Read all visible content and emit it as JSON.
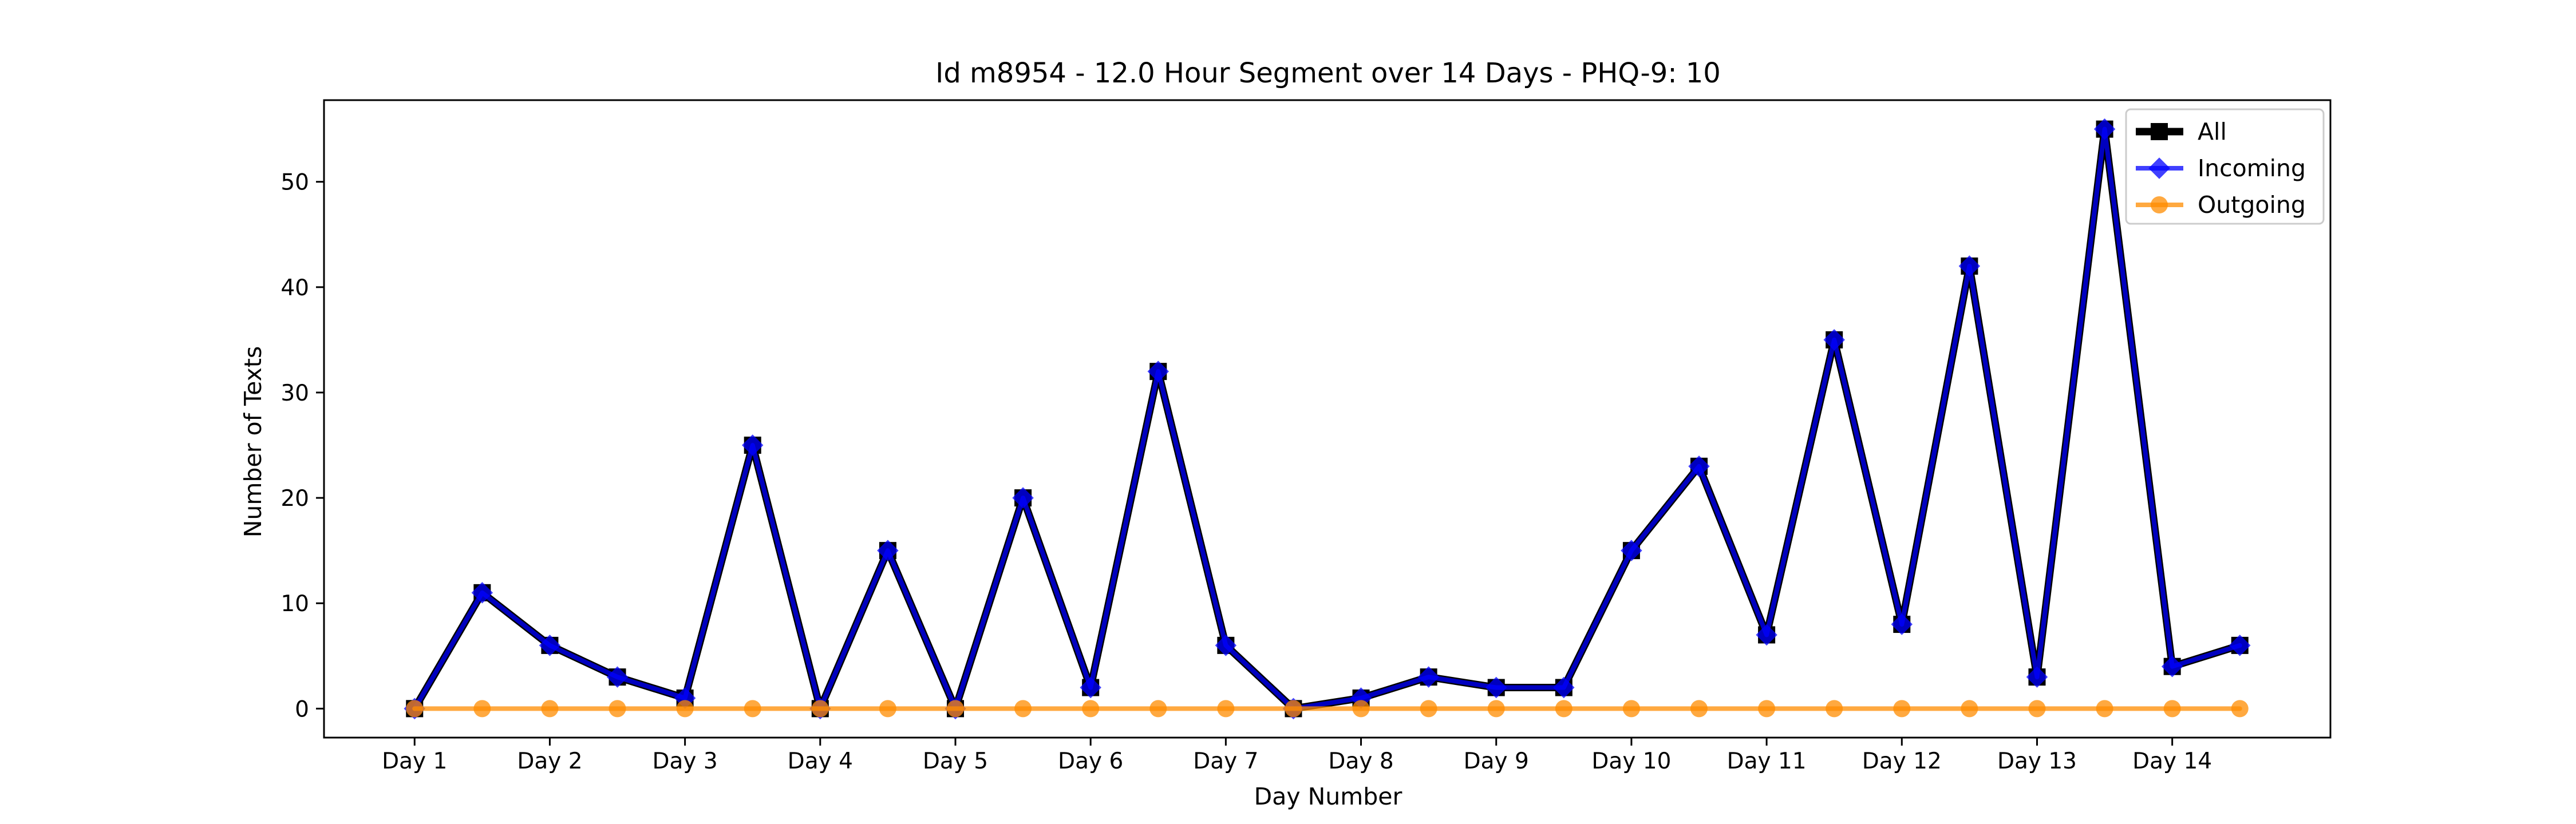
{
  "chart_data": {
    "type": "line",
    "title": "Id m8954 - 12.0 Hour Segment over 14 Days - PHQ-9: 10",
    "xlabel": "Day Number",
    "ylabel": "Number of Texts",
    "categories": [
      "Day 1",
      "Day 2",
      "Day 3",
      "Day 4",
      "Day 5",
      "Day 6",
      "Day 7",
      "Day 8",
      "Day 9",
      "Day 10",
      "Day 11",
      "Day 12",
      "Day 13",
      "Day 14"
    ],
    "x": [
      1,
      1.5,
      2,
      2.5,
      3,
      3.5,
      4,
      4.5,
      5,
      5.5,
      6,
      6.5,
      7,
      7.5,
      8,
      8.5,
      9,
      9.5,
      10,
      10.5,
      11,
      11.5,
      12,
      12.5,
      13,
      13.5,
      14,
      14.5
    ],
    "xlim": [
      0.33,
      15.17
    ],
    "ylim": [
      -2.75,
      57.75
    ],
    "yticks": [
      0,
      10,
      20,
      30,
      40,
      50
    ],
    "grid": false,
    "legend_position": "top-right",
    "series": [
      {
        "name": "All",
        "color": "#000000",
        "marker": "square",
        "values": [
          0,
          11,
          6,
          3,
          1,
          25,
          0,
          15,
          0,
          20,
          2,
          32,
          6,
          0,
          1,
          3,
          2,
          2,
          15,
          23,
          7,
          35,
          8,
          42,
          3,
          55,
          4,
          6
        ]
      },
      {
        "name": "Incoming",
        "color": "#0000ff",
        "marker": "diamond",
        "values": [
          0,
          11,
          6,
          3,
          1,
          25,
          0,
          15,
          0,
          20,
          2,
          32,
          6,
          0,
          1,
          3,
          2,
          2,
          15,
          23,
          7,
          35,
          8,
          42,
          3,
          55,
          4,
          6
        ]
      },
      {
        "name": "Outgoing",
        "color": "#ff8c00",
        "marker": "circle",
        "values": [
          0,
          0,
          0,
          0,
          0,
          0,
          0,
          0,
          0,
          0,
          0,
          0,
          0,
          0,
          0,
          0,
          0,
          0,
          0,
          0,
          0,
          0,
          0,
          0,
          0,
          0,
          0,
          0
        ]
      }
    ]
  }
}
